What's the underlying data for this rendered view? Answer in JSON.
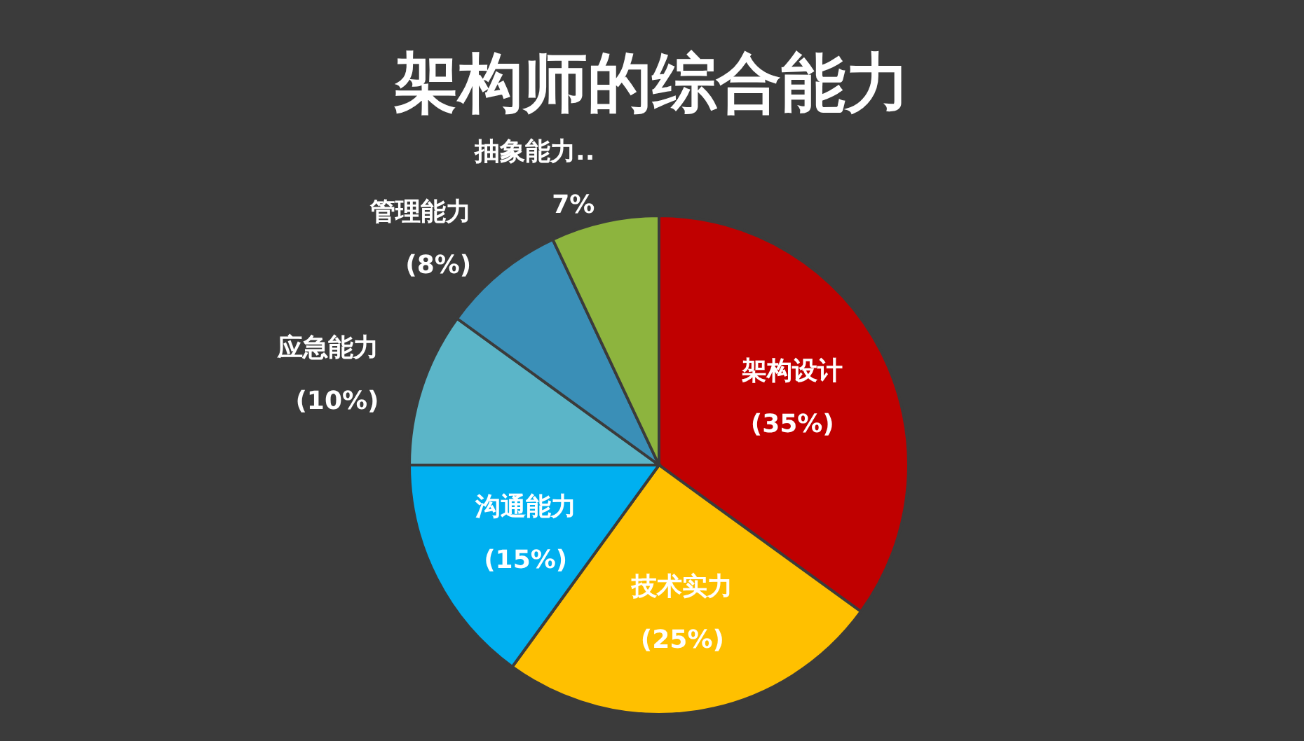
{
  "chart_data": {
    "type": "pie",
    "title": "架构师的综合能力",
    "categories": [
      "架构设计",
      "技术实力",
      "沟通能力",
      "应急能力",
      "管理能力",
      "抽象能力.."
    ],
    "values": [
      35,
      25,
      15,
      10,
      8,
      7
    ],
    "value_labels": [
      "(35%)",
      "(25%)",
      "(15%)",
      "(10%)",
      "(8%)",
      "7%"
    ],
    "colors": [
      "#c00000",
      "#ffc000",
      "#00b0f0",
      "#5bb5c8",
      "#3a8fb7",
      "#8db43e"
    ]
  }
}
